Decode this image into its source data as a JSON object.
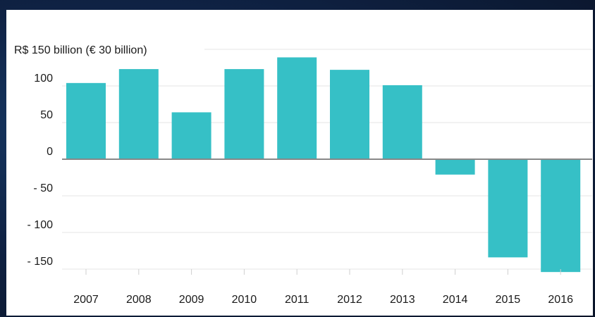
{
  "chart_data": {
    "type": "bar",
    "title": "R$ 150 billion (€ 30 billion)",
    "categories": [
      "2007",
      "2008",
      "2009",
      "2010",
      "2011",
      "2012",
      "2013",
      "2014",
      "2015",
      "2016"
    ],
    "values": [
      104,
      123,
      64,
      123,
      139,
      122,
      101,
      -21,
      -134,
      -154
    ],
    "y_ticks": [
      {
        "value": 100,
        "label": "100"
      },
      {
        "value": 50,
        "label": "50"
      },
      {
        "value": 0,
        "label": "0"
      },
      {
        "value": -50,
        "label": "- 50"
      },
      {
        "value": -100,
        "label": "- 100"
      },
      {
        "value": -150,
        "label": "- 150"
      }
    ],
    "ylim": [
      -160,
      150
    ],
    "xlabel": "",
    "ylabel": "",
    "grid": true,
    "colors": {
      "bar": "#36c0c6",
      "grid": "#e6e6e6",
      "zero_line": "#888888",
      "text": "#1a1a1a"
    }
  }
}
